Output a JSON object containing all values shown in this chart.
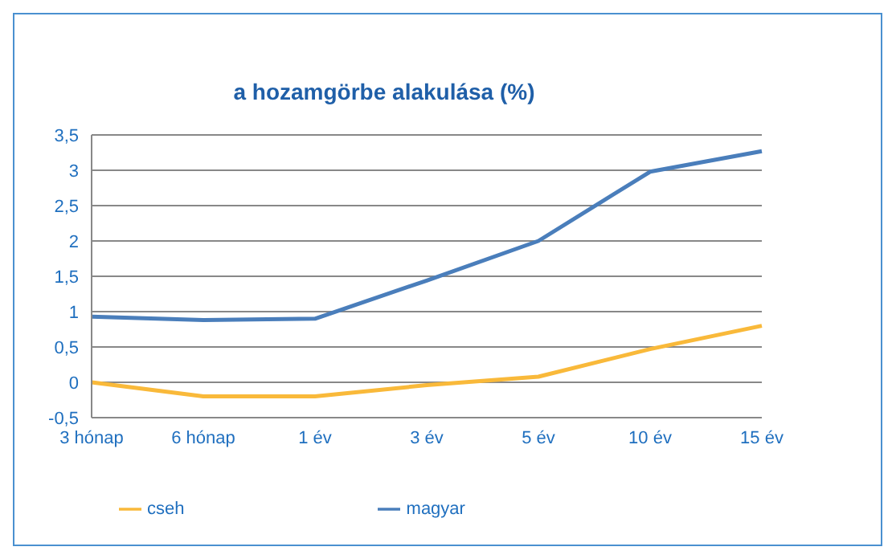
{
  "chart_data": {
    "type": "line",
    "title": "a hozamgörbe alakulása (%)",
    "categories": [
      "3 hónap",
      "6 hónap",
      "1 év",
      "3 év",
      "5 év",
      "10 év",
      "15 év"
    ],
    "series": [
      {
        "name": "magyar",
        "color": "#4a7ebb",
        "values": [
          0.93,
          0.88,
          0.9,
          1.44,
          2.0,
          2.98,
          3.27
        ]
      },
      {
        "name": "cseh",
        "color": "#f9b93a",
        "values": [
          0,
          -0.2,
          -0.2,
          -0.04,
          0.08,
          0.47,
          0.8
        ]
      }
    ],
    "ylim": [
      -0.5,
      3.5
    ],
    "yticks": [
      {
        "value": -0.5,
        "label": "-0,5"
      },
      0,
      {
        "value": 0.5,
        "label": "0,5"
      },
      1,
      {
        "value": 1.5,
        "label": "1,5"
      },
      2,
      {
        "value": 2.5,
        "label": "2,5"
      },
      3,
      {
        "value": 3.5,
        "label": "3,5"
      }
    ],
    "grid": "y",
    "legend": "bottom",
    "marker": "none",
    "line_style": "solid"
  }
}
